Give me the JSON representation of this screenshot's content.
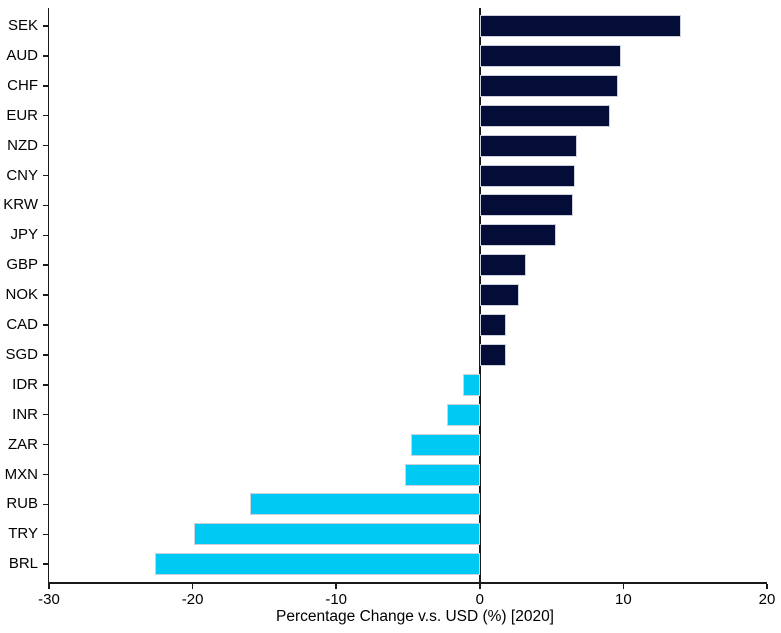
{
  "chart_data": {
    "type": "bar",
    "orientation": "horizontal",
    "title": "",
    "xlabel": "Percentage Change v.s. USD (%) [2020]",
    "ylabel": "",
    "categories": [
      "SEK",
      "AUD",
      "CHF",
      "EUR",
      "NZD",
      "CNY",
      "KRW",
      "JPY",
      "GBP",
      "NOK",
      "CAD",
      "SGD",
      "IDR",
      "INR",
      "ZAR",
      "MXN",
      "RUB",
      "TRY",
      "BRL"
    ],
    "values": [
      14.0,
      9.8,
      9.6,
      9.1,
      6.8,
      6.6,
      6.5,
      5.3,
      3.2,
      2.7,
      1.8,
      1.8,
      -1.2,
      -2.3,
      -4.8,
      -5.2,
      -16.0,
      -19.9,
      -22.6
    ],
    "xlim": [
      -30,
      20
    ],
    "xticks": [
      -30,
      -20,
      -10,
      0,
      10,
      20
    ],
    "grid": false,
    "legend_position": "none",
    "positive_color": "#030d38",
    "negative_color": "#00c9f3",
    "bar_edge_color": "#ccd1dc",
    "axis_color": "#1a1a1a"
  }
}
